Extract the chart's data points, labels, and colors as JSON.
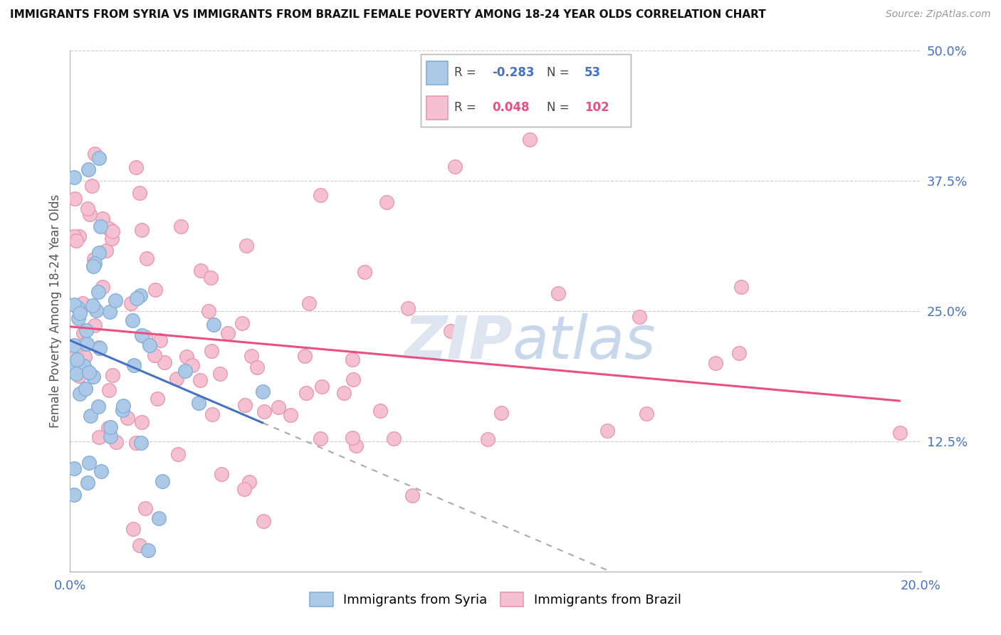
{
  "title": "IMMIGRANTS FROM SYRIA VS IMMIGRANTS FROM BRAZIL FEMALE POVERTY AMONG 18-24 YEAR OLDS CORRELATION CHART",
  "source": "Source: ZipAtlas.com",
  "ylabel_label": "Female Poverty Among 18-24 Year Olds",
  "legend_syria": "Immigrants from Syria",
  "legend_brazil": "Immigrants from Brazil",
  "syria_R": -0.283,
  "syria_N": 53,
  "brazil_R": 0.048,
  "brazil_N": 102,
  "syria_color": "#adc9e8",
  "syria_edge": "#85afd8",
  "brazil_color": "#f5c0d0",
  "brazil_edge": "#e898b4",
  "syria_line_color": "#4472c4",
  "brazil_line_color": "#e85080",
  "dash_color": "#aaaaaa",
  "watermark_color": "#dde5f0",
  "xlim": [
    0.0,
    0.2
  ],
  "ylim": [
    0.0,
    0.5
  ],
  "xticks": [
    0.0,
    0.025,
    0.05,
    0.075,
    0.1,
    0.125,
    0.15,
    0.175,
    0.2
  ],
  "yticks": [
    0.0,
    0.125,
    0.25,
    0.375,
    0.5
  ],
  "syria_seed": 77,
  "brazil_seed": 42
}
